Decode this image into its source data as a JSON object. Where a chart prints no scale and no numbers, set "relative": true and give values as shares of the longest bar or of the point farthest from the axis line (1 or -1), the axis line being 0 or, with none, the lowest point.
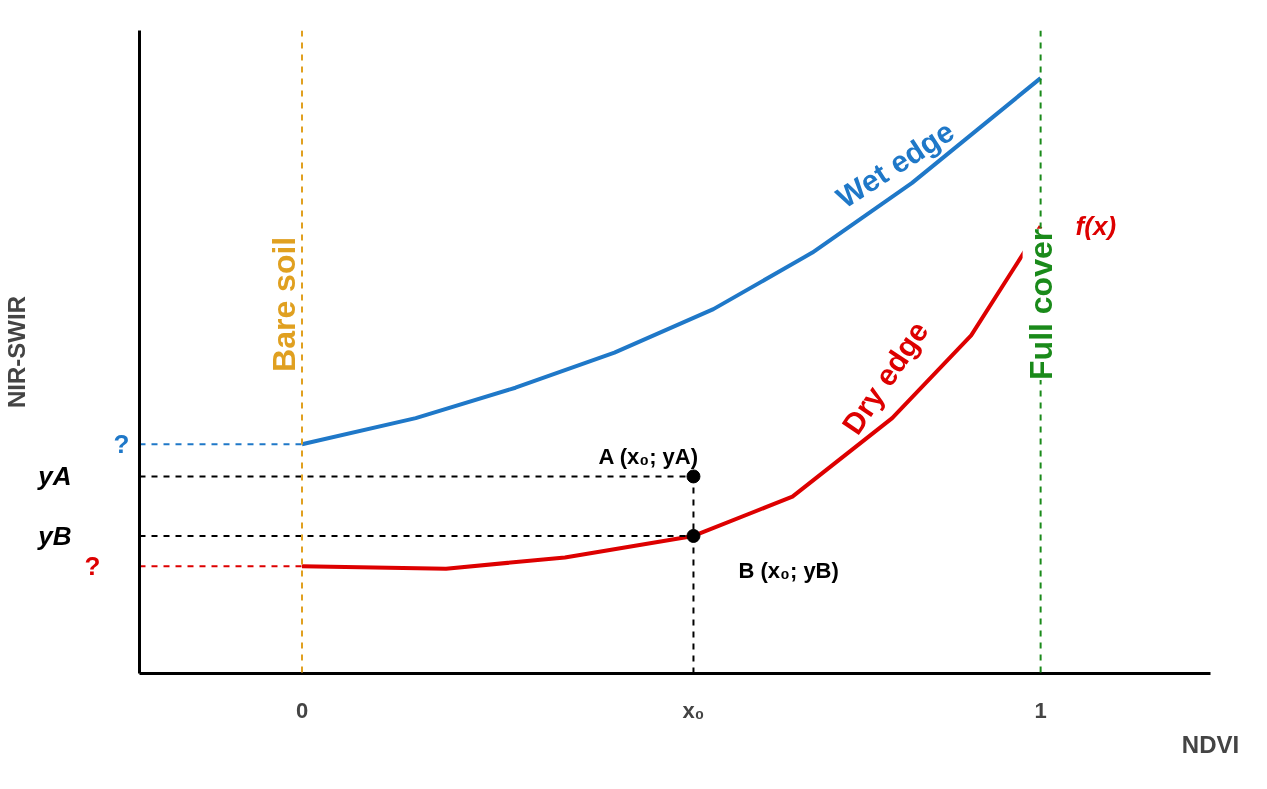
{
  "chart_data": {
    "type": "line",
    "relative": true,
    "xlabel": "NDVI",
    "ylabel": "NIR-SWIR",
    "xlim": [
      -0.22,
      1.23
    ],
    "xticks": [
      0,
      {
        "value": 0.53,
        "label": "x₀"
      },
      1
    ],
    "grid": false,
    "line_style": "solid",
    "marker": "none",
    "series": [
      {
        "color": "#1f78c8",
        "x": [
          0,
          0.154,
          0.289,
          0.423,
          0.557,
          0.691,
          0.826,
          1
        ],
        "values": [
          0.385,
          0.429,
          0.48,
          0.539,
          0.612,
          0.707,
          0.824,
          1
        ]
      },
      {
        "color": "#dd0000",
        "x": [
          0,
          0.195,
          0.356,
          0.53,
          0.664,
          0.799,
          0.906,
          1
        ],
        "values": [
          0.18,
          0.176,
          0.195,
          0.231,
          0.297,
          0.429,
          0.568,
          0.751
        ]
      },
      {
        "type": "line",
        "color": "#1f78c8",
        "line_style": "dashed",
        "x": [
          -0.22,
          0
        ],
        "values": [
          0.385,
          0.385
        ]
      },
      {
        "type": "line",
        "color": "#dd0000",
        "line_style": "dashed",
        "x": [
          -0.22,
          0
        ],
        "values": [
          0.18,
          0.18
        ]
      },
      {
        "type": "line",
        "color": "#000000",
        "line_style": "dashed",
        "x": [
          -0.22,
          0.53
        ],
        "values": [
          0.331,
          0.331
        ]
      },
      {
        "type": "line",
        "color": "#000000",
        "line_style": "dashed",
        "x": [
          -0.22,
          0.53
        ],
        "values": [
          0.231,
          0.231
        ]
      },
      {
        "type": "line",
        "color": "#000000",
        "line_style": "dashed",
        "x": [
          0.53,
          0.53
        ],
        "values": [
          0,
          0.331
        ]
      },
      {
        "type": "scatter",
        "color": "#000000",
        "marker": "circle",
        "x": [
          0.53,
          0.53
        ],
        "values": [
          0.331,
          0.231
        ]
      }
    ],
    "ref_lines": [
      {
        "axis": "x",
        "value": 0,
        "label": "Bare soil",
        "color": "#e0a020",
        "line_style": "dashed"
      },
      {
        "axis": "x",
        "value": 1,
        "label": "Full cover",
        "color": "#1a8a1a",
        "line_style": "dashed"
      }
    ],
    "annotations": [
      {
        "text": "Wet edge",
        "x": 0.83,
        "y": 0.83
      },
      {
        "text": "Dry edge",
        "x": 0.83,
        "y": 0.48
      },
      {
        "text": "f(x)",
        "x": 1,
        "y": 0.751
      },
      {
        "text": "A (x₀; yA)",
        "x": 0.53,
        "y": 0.331
      },
      {
        "text": "B (x₀; yB)",
        "x": 0.53,
        "y": 0.231
      },
      {
        "text": "?",
        "x": -0.22,
        "y": 0.385
      },
      {
        "text": "?",
        "x": -0.22,
        "y": 0.18
      },
      {
        "text": "yA",
        "x": -0.22,
        "y": 0.331
      },
      {
        "text": "yB",
        "x": -0.22,
        "y": 0.231
      }
    ]
  }
}
